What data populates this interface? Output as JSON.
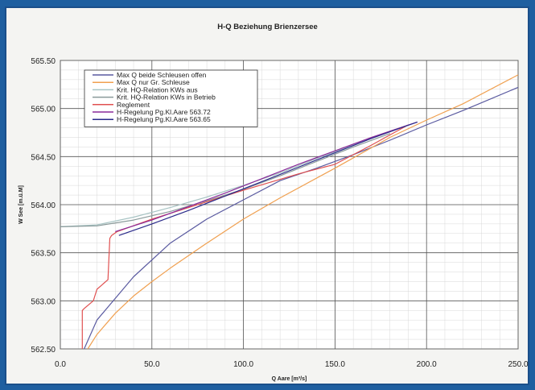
{
  "chart_data": {
    "type": "line",
    "title": "H-Q Beziehung Brienzersee",
    "xlabel": "Q Aare [m³/s]",
    "ylabel": "W See [m.ü.M]",
    "xlim": [
      0,
      250
    ],
    "ylim": [
      562.5,
      565.5
    ],
    "x_ticks": [
      "0.0",
      "50.0",
      "100.0",
      "150.0",
      "200.0",
      "250.0"
    ],
    "y_ticks": [
      "562.50",
      "563.00",
      "563.50",
      "564.00",
      "564.50",
      "565.00",
      "565.50"
    ],
    "grid": true,
    "legend_position": "top-left",
    "series": [
      {
        "name": "Max Q beide Schleusen offen",
        "color": "#5a5aa0",
        "x": [
          13,
          20,
          40,
          60,
          80,
          100,
          120,
          140,
          160,
          180,
          200,
          220,
          250
        ],
        "y": [
          562.5,
          562.8,
          563.25,
          563.6,
          563.85,
          564.05,
          564.25,
          564.38,
          564.52,
          564.67,
          564.83,
          564.98,
          565.22
        ]
      },
      {
        "name": "Max Q nur Gr. Schleuse",
        "color": "#f0a050",
        "x": [
          15,
          20,
          30,
          40,
          50,
          60,
          80,
          100,
          120,
          150,
          180,
          200,
          220,
          250
        ],
        "y": [
          562.5,
          562.65,
          562.87,
          563.05,
          563.2,
          563.34,
          563.6,
          563.85,
          564.07,
          564.38,
          564.7,
          564.88,
          565.05,
          565.35
        ]
      },
      {
        "name": "Krit. HQ-Relation KWs aus",
        "color": "#a8c4c4",
        "x": [
          0,
          20,
          40,
          60,
          80,
          100,
          120,
          140,
          160,
          180
        ],
        "y": [
          563.77,
          563.79,
          563.87,
          563.97,
          564.08,
          564.2,
          564.33,
          564.48,
          564.62,
          564.76
        ]
      },
      {
        "name": "Krit. HQ-Relation KWs in Betrieb",
        "color": "#8a9a9a",
        "x": [
          0,
          20,
          40,
          60,
          80,
          100,
          120,
          140,
          160,
          180
        ],
        "y": [
          563.77,
          563.78,
          563.84,
          563.93,
          564.04,
          564.16,
          564.3,
          564.45,
          564.6,
          564.74
        ]
      },
      {
        "name": "Reglement",
        "color": "#e05050",
        "x": [
          12,
          12,
          13,
          18,
          20,
          26,
          27,
          28,
          31,
          50,
          100,
          130,
          150,
          170,
          190
        ],
        "y": [
          562.5,
          562.9,
          562.92,
          563.0,
          563.12,
          563.22,
          563.65,
          563.68,
          563.72,
          563.85,
          564.15,
          564.32,
          564.42,
          564.62,
          564.83
        ]
      },
      {
        "name": "H-Regelung Pg.Kl.Aare 563.72",
        "color": "#8a2a9a",
        "x": [
          30,
          50,
          70,
          90,
          110,
          130,
          150,
          170,
          195
        ],
        "y": [
          563.72,
          563.84,
          563.98,
          564.12,
          564.27,
          564.42,
          564.56,
          564.7,
          564.86
        ]
      },
      {
        "name": "H-Regelung Pg.Kl.Aare 563.65",
        "color": "#2a2a8a",
        "x": [
          32,
          50,
          70,
          90,
          110,
          130,
          150,
          170,
          195
        ],
        "y": [
          563.68,
          563.8,
          563.94,
          564.09,
          564.24,
          564.39,
          564.54,
          564.69,
          564.86
        ]
      }
    ]
  }
}
